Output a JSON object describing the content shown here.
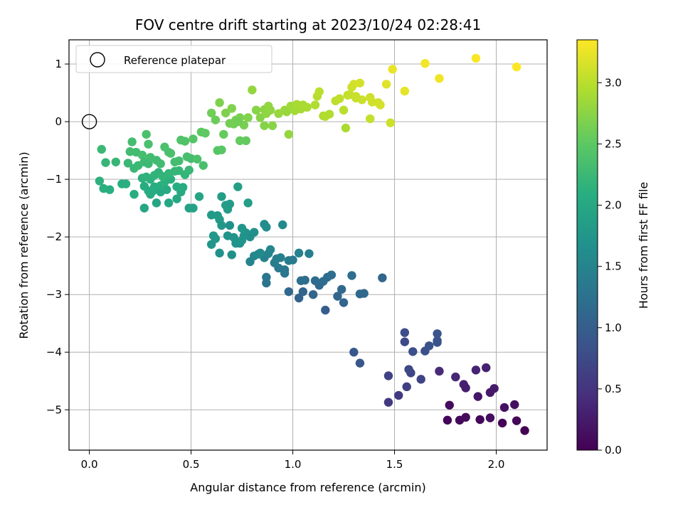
{
  "chart_data": {
    "type": "scatter",
    "title": "FOV centre drift starting at 2023/10/24 02:28:41",
    "xlabel": "Angular distance from reference (arcmin)",
    "ylabel": "Rotation from reference (arcmin)",
    "xlim": [
      -0.1,
      2.25
    ],
    "ylim": [
      -5.7,
      1.42
    ],
    "xticks": [
      0.0,
      0.5,
      1.0,
      1.5,
      2.0
    ],
    "xtick_labels": [
      "0.0",
      "0.5",
      "1.0",
      "1.5",
      "2.0"
    ],
    "yticks": [
      1,
      0,
      -1,
      -2,
      -3,
      -4,
      -5
    ],
    "ytick_labels": [
      "1",
      "0",
      "−1",
      "−2",
      "−3",
      "−4",
      "−5"
    ],
    "grid": true,
    "legend": {
      "location": "upper-left",
      "entries": [
        {
          "label": "Reference platepar",
          "marker": "open-circle",
          "x": 0.0,
          "y": 0.0
        }
      ]
    },
    "colorbar": {
      "label": "Hours from first FF file",
      "colormap": "viridis",
      "range": [
        0.0,
        3.35
      ],
      "ticks": [
        0.0,
        0.5,
        1.0,
        1.5,
        2.0,
        2.5,
        3.0
      ],
      "tick_labels": [
        "0.0",
        "0.5",
        "1.0",
        "1.5",
        "2.0",
        "2.5",
        "3.0"
      ]
    },
    "points": [
      [
        1.76,
        -5.18,
        0.05
      ],
      [
        1.82,
        -5.18,
        0.08
      ],
      [
        1.85,
        -5.13,
        0.1
      ],
      [
        1.92,
        -5.17,
        0.06
      ],
      [
        1.97,
        -5.14,
        0.12
      ],
      [
        2.03,
        -5.23,
        0.02
      ],
      [
        2.1,
        -5.19,
        0.05
      ],
      [
        2.14,
        -5.36,
        0.01
      ],
      [
        1.77,
        -4.92,
        0.1
      ],
      [
        2.04,
        -4.96,
        0.15
      ],
      [
        2.09,
        -4.91,
        0.13
      ],
      [
        1.91,
        -4.77,
        0.2
      ],
      [
        1.99,
        -4.63,
        0.25
      ],
      [
        1.97,
        -4.7,
        0.22
      ],
      [
        1.84,
        -4.56,
        0.3
      ],
      [
        1.85,
        -4.62,
        0.28
      ],
      [
        1.8,
        -4.43,
        0.35
      ],
      [
        1.72,
        -4.33,
        0.4
      ],
      [
        1.9,
        -4.31,
        0.33
      ],
      [
        1.95,
        -4.27,
        0.3
      ],
      [
        1.52,
        -4.75,
        0.58
      ],
      [
        1.47,
        -4.87,
        0.55
      ],
      [
        1.56,
        -4.6,
        0.62
      ],
      [
        1.47,
        -4.41,
        0.65
      ],
      [
        1.58,
        -4.36,
        0.7
      ],
      [
        1.63,
        -4.47,
        0.68
      ],
      [
        1.57,
        -4.3,
        0.72
      ],
      [
        1.55,
        -3.82,
        0.75
      ],
      [
        1.55,
        -3.66,
        0.78
      ],
      [
        1.59,
        -3.99,
        0.8
      ],
      [
        1.65,
        -3.98,
        0.82
      ],
      [
        1.67,
        -3.89,
        0.85
      ],
      [
        1.71,
        -3.83,
        0.83
      ],
      [
        1.71,
        -3.8,
        0.86
      ],
      [
        1.71,
        -3.68,
        0.88
      ],
      [
        1.3,
        -4.0,
        0.92
      ],
      [
        1.33,
        -4.19,
        0.9
      ],
      [
        1.03,
        -3.06,
        1.05
      ],
      [
        1.05,
        -2.95,
        1.08
      ],
      [
        1.1,
        -3.0,
        1.1
      ],
      [
        1.16,
        -3.27,
        1.0
      ],
      [
        0.98,
        -2.95,
        1.12
      ],
      [
        1.13,
        -2.84,
        1.15
      ],
      [
        1.17,
        -2.7,
        1.18
      ],
      [
        1.19,
        -2.66,
        1.2
      ],
      [
        1.22,
        -3.03,
        1.1
      ],
      [
        1.24,
        -2.91,
        1.13
      ],
      [
        1.25,
        -3.14,
        1.07
      ],
      [
        1.29,
        -2.67,
        1.2
      ],
      [
        1.33,
        -2.99,
        1.12
      ],
      [
        1.35,
        -2.98,
        1.14
      ],
      [
        1.44,
        -2.71,
        1.1
      ],
      [
        1.04,
        -2.76,
        1.22
      ],
      [
        1.06,
        -2.75,
        1.2
      ],
      [
        1.11,
        -2.76,
        1.17
      ],
      [
        1.15,
        -2.77,
        1.16
      ],
      [
        0.87,
        -2.7,
        1.3
      ],
      [
        0.87,
        -2.8,
        1.28
      ],
      [
        0.93,
        -2.54,
        1.35
      ],
      [
        0.96,
        -2.57,
        1.33
      ],
      [
        0.96,
        -2.63,
        1.32
      ],
      [
        0.91,
        -2.45,
        1.4
      ],
      [
        0.92,
        -2.38,
        1.42
      ],
      [
        0.94,
        -2.36,
        1.44
      ],
      [
        0.98,
        -2.41,
        1.4
      ],
      [
        1.0,
        -2.4,
        1.38
      ],
      [
        1.03,
        -2.28,
        1.45
      ],
      [
        1.08,
        -2.29,
        1.43
      ],
      [
        0.86,
        -2.36,
        1.46
      ],
      [
        0.88,
        -2.29,
        1.5
      ],
      [
        0.89,
        -2.22,
        1.52
      ],
      [
        0.84,
        -2.28,
        1.55
      ],
      [
        0.81,
        -2.33,
        1.53
      ],
      [
        0.79,
        -2.43,
        1.5
      ],
      [
        0.83,
        -2.3,
        1.57
      ],
      [
        0.86,
        -1.78,
        1.6
      ],
      [
        0.87,
        -1.83,
        1.62
      ],
      [
        0.95,
        -1.79,
        1.58
      ],
      [
        0.81,
        -1.92,
        1.65
      ],
      [
        0.79,
        -2.0,
        1.63
      ],
      [
        0.68,
        -1.98,
        1.7
      ],
      [
        0.69,
        -1.8,
        1.68
      ],
      [
        0.71,
        -2.01,
        1.72
      ],
      [
        0.72,
        -2.11,
        1.69
      ],
      [
        0.74,
        -2.11,
        1.71
      ],
      [
        0.75,
        -2.06,
        1.73
      ],
      [
        0.76,
        -1.98,
        1.7
      ],
      [
        0.77,
        -1.93,
        1.68
      ],
      [
        0.7,
        -2.31,
        1.66
      ],
      [
        0.64,
        -2.28,
        1.67
      ],
      [
        0.6,
        -2.13,
        1.75
      ],
      [
        0.61,
        -1.98,
        1.78
      ],
      [
        0.62,
        -2.03,
        1.76
      ],
      [
        0.6,
        -1.62,
        1.8
      ],
      [
        0.63,
        -1.63,
        1.79
      ],
      [
        0.64,
        -1.7,
        1.81
      ],
      [
        0.65,
        -1.8,
        1.77
      ],
      [
        0.65,
        -1.3,
        1.85
      ],
      [
        0.67,
        -1.45,
        1.83
      ],
      [
        0.68,
        -1.52,
        1.84
      ],
      [
        0.69,
        -1.43,
        1.82
      ],
      [
        0.73,
        -1.13,
        1.88
      ],
      [
        0.78,
        -1.41,
        1.86
      ],
      [
        0.75,
        -1.85,
        1.74
      ],
      [
        0.49,
        -1.5,
        1.9
      ],
      [
        0.51,
        -1.5,
        1.92
      ],
      [
        0.54,
        -1.3,
        1.95
      ],
      [
        0.27,
        -1.5,
        1.98
      ],
      [
        0.35,
        -1.22,
        2.0
      ],
      [
        0.38,
        -1.18,
        2.02
      ],
      [
        0.43,
        -1.34,
        2.01
      ],
      [
        0.45,
        -1.22,
        2.03
      ],
      [
        0.46,
        -1.14,
        2.05
      ],
      [
        0.33,
        -1.41,
        1.97
      ],
      [
        0.39,
        -1.41,
        1.99
      ],
      [
        0.3,
        -1.26,
        2.04
      ],
      [
        0.27,
        -1.12,
        2.06
      ],
      [
        0.22,
        -1.26,
        2.08
      ],
      [
        0.29,
        -1.2,
        2.07
      ],
      [
        0.31,
        -1.21,
        2.05
      ],
      [
        0.32,
        -1.13,
        2.09
      ],
      [
        0.35,
        -1.11,
        2.1
      ],
      [
        0.37,
        -1.05,
        2.12
      ],
      [
        0.4,
        -1.0,
        2.11
      ],
      [
        0.43,
        -1.13,
        2.08
      ],
      [
        0.26,
        -0.98,
        2.13
      ],
      [
        0.28,
        -0.96,
        2.15
      ],
      [
        0.3,
        -1.0,
        2.14
      ],
      [
        0.32,
        -0.93,
        2.17
      ],
      [
        0.34,
        -0.88,
        2.16
      ],
      [
        0.36,
        -0.95,
        2.18
      ],
      [
        0.39,
        -0.9,
        2.19
      ],
      [
        0.42,
        -0.86,
        2.2
      ],
      [
        0.44,
        -0.85,
        2.21
      ],
      [
        0.47,
        -0.92,
        2.18
      ],
      [
        0.49,
        -0.84,
        2.22
      ],
      [
        0.18,
        -1.08,
        2.12
      ],
      [
        0.16,
        -1.08,
        2.1
      ],
      [
        0.1,
        -1.18,
        2.09
      ],
      [
        0.07,
        -1.16,
        2.11
      ],
      [
        0.05,
        -1.03,
        2.13
      ],
      [
        0.08,
        -0.71,
        2.2
      ],
      [
        0.06,
        -0.48,
        2.25
      ],
      [
        0.13,
        -0.7,
        2.22
      ],
      [
        0.19,
        -0.72,
        2.24
      ],
      [
        0.2,
        -0.52,
        2.3
      ],
      [
        0.21,
        -0.35,
        2.32
      ],
      [
        0.23,
        -0.53,
        2.3
      ],
      [
        0.26,
        -0.58,
        2.33
      ],
      [
        0.28,
        -0.22,
        2.38
      ],
      [
        0.29,
        -0.39,
        2.36
      ],
      [
        0.22,
        -0.81,
        2.23
      ],
      [
        0.24,
        -0.76,
        2.25
      ],
      [
        0.27,
        -0.7,
        2.27
      ],
      [
        0.29,
        -0.73,
        2.26
      ],
      [
        0.3,
        -0.62,
        2.3
      ],
      [
        0.33,
        -0.67,
        2.29
      ],
      [
        0.35,
        -0.73,
        2.3
      ],
      [
        0.37,
        -0.44,
        2.38
      ],
      [
        0.39,
        -0.53,
        2.37
      ],
      [
        0.4,
        -0.55,
        2.36
      ],
      [
        0.42,
        -0.7,
        2.31
      ],
      [
        0.44,
        -0.68,
        2.32
      ],
      [
        0.45,
        -0.32,
        2.42
      ],
      [
        0.47,
        -0.34,
        2.41
      ],
      [
        0.48,
        -0.61,
        2.35
      ],
      [
        0.5,
        -0.64,
        2.33
      ],
      [
        0.51,
        -0.3,
        2.44
      ],
      [
        0.56,
        -0.76,
        2.35
      ],
      [
        0.53,
        -0.65,
        2.38
      ],
      [
        0.55,
        -0.18,
        2.5
      ],
      [
        0.57,
        -0.2,
        2.52
      ],
      [
        0.6,
        0.15,
        2.6
      ],
      [
        0.62,
        0.03,
        2.58
      ],
      [
        0.63,
        -0.5,
        2.45
      ],
      [
        0.65,
        -0.49,
        2.47
      ],
      [
        0.66,
        -0.22,
        2.55
      ],
      [
        0.69,
        -0.03,
        2.62
      ],
      [
        0.71,
        -0.04,
        2.63
      ],
      [
        0.72,
        0.03,
        2.64
      ],
      [
        0.74,
        0.07,
        2.66
      ],
      [
        0.76,
        -0.06,
        2.65
      ],
      [
        0.77,
        -0.33,
        2.54
      ],
      [
        0.74,
        -0.33,
        2.55
      ],
      [
        0.64,
        0.33,
        2.68
      ],
      [
        0.67,
        0.15,
        2.69
      ],
      [
        0.7,
        0.23,
        2.7
      ],
      [
        0.78,
        0.07,
        2.7
      ],
      [
        0.8,
        0.55,
        2.8
      ],
      [
        0.82,
        0.2,
        2.74
      ],
      [
        0.84,
        0.07,
        2.73
      ],
      [
        0.86,
        0.21,
        2.76
      ],
      [
        0.86,
        -0.07,
        2.72
      ],
      [
        0.87,
        0.14,
        2.77
      ],
      [
        0.88,
        0.27,
        2.79
      ],
      [
        0.9,
        -0.07,
        2.74
      ],
      [
        0.93,
        0.14,
        2.82
      ],
      [
        0.96,
        0.2,
        2.84
      ],
      [
        0.97,
        0.17,
        2.83
      ],
      [
        0.99,
        0.27,
        2.86
      ],
      [
        1.01,
        0.19,
        2.88
      ],
      [
        1.02,
        0.3,
        2.9
      ],
      [
        1.04,
        0.22,
        2.89
      ],
      [
        1.05,
        0.29,
        2.91
      ],
      [
        1.07,
        0.25,
        2.92
      ],
      [
        0.98,
        -0.22,
        2.8
      ],
      [
        1.11,
        0.29,
        2.95
      ],
      [
        1.12,
        0.44,
        2.98
      ],
      [
        1.13,
        0.52,
        3.0
      ],
      [
        1.15,
        0.1,
        2.93
      ],
      [
        1.18,
        0.13,
        2.95
      ],
      [
        1.21,
        0.36,
        3.02
      ],
      [
        1.23,
        0.4,
        3.03
      ],
      [
        1.25,
        0.2,
        3.0
      ],
      [
        1.26,
        -0.11,
        2.92
      ],
      [
        1.27,
        0.46,
        3.05
      ],
      [
        1.28,
        0.47,
        3.06
      ],
      [
        1.29,
        0.6,
        3.1
      ],
      [
        1.3,
        0.65,
        3.12
      ],
      [
        1.31,
        0.41,
        3.08
      ],
      [
        1.33,
        0.67,
        3.13
      ],
      [
        1.34,
        0.38,
        3.09
      ],
      [
        1.38,
        0.05,
        3.05
      ],
      [
        1.38,
        0.42,
        3.1
      ],
      [
        1.39,
        0.34,
        3.11
      ],
      [
        1.42,
        0.33,
        3.12
      ],
      [
        1.43,
        0.29,
        3.13
      ],
      [
        1.46,
        0.65,
        3.2
      ],
      [
        1.48,
        -0.02,
        3.1
      ],
      [
        1.49,
        0.91,
        3.25
      ],
      [
        1.55,
        0.53,
        3.22
      ],
      [
        1.65,
        1.01,
        3.3
      ],
      [
        1.72,
        0.75,
        3.28
      ],
      [
        1.9,
        1.1,
        3.33
      ],
      [
        2.1,
        0.95,
        3.35
      ],
      [
        1.16,
        0.09,
        2.96
      ],
      [
        1.31,
        0.44,
        3.07
      ],
      [
        0.89,
        0.2,
        2.78
      ],
      [
        0.73,
        0.0,
        2.61
      ]
    ]
  }
}
